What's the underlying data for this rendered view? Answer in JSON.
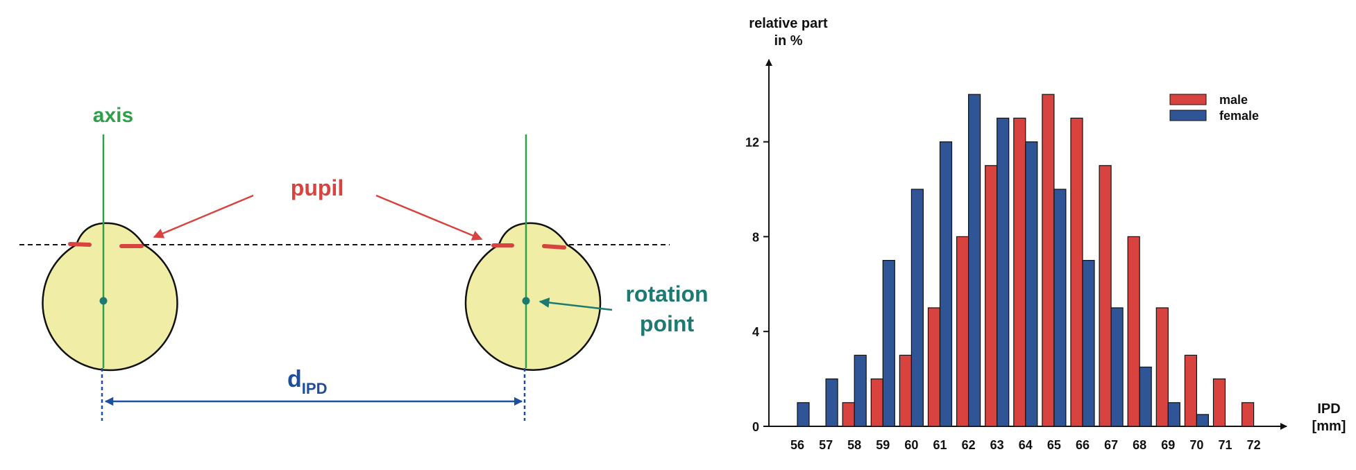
{
  "diagram": {
    "axis_label": "axis",
    "pupil_label": "pupil",
    "rotation_label_line1": "rotation",
    "rotation_label_line2": "point",
    "distance_label_main": "d",
    "distance_label_sub": "IPD",
    "colors": {
      "eye_fill": "#f0eea6",
      "axis": "#2ea04a",
      "pupil": "#d9433f",
      "rotation": "#1d7a72",
      "distance": "#1f4f9a"
    }
  },
  "chart_data": {
    "type": "bar",
    "title": "",
    "ylabel_line1": "relative part",
    "ylabel_line2": "in %",
    "xlabel_line1": "IPD",
    "xlabel_line2": "[mm]",
    "categories": [
      "56",
      "57",
      "58",
      "59",
      "60",
      "61",
      "62",
      "63",
      "64",
      "65",
      "66",
      "67",
      "68",
      "69",
      "70",
      "71",
      "72"
    ],
    "series": [
      {
        "name": "male",
        "color": "#d9433f",
        "values": [
          0,
          0,
          1,
          2,
          3,
          5,
          8,
          11,
          13,
          14,
          13,
          11,
          8,
          5,
          3,
          2,
          1
        ]
      },
      {
        "name": "female",
        "color": "#2f5597",
        "values": [
          1,
          2,
          3,
          7,
          10,
          12,
          14,
          13,
          12,
          10,
          7,
          5,
          2.5,
          1,
          0.5,
          0,
          0
        ]
      }
    ],
    "yticks": [
      0,
      4,
      8,
      12
    ],
    "ylim": [
      0,
      15
    ],
    "grid": false,
    "legend_position": "top-right"
  }
}
